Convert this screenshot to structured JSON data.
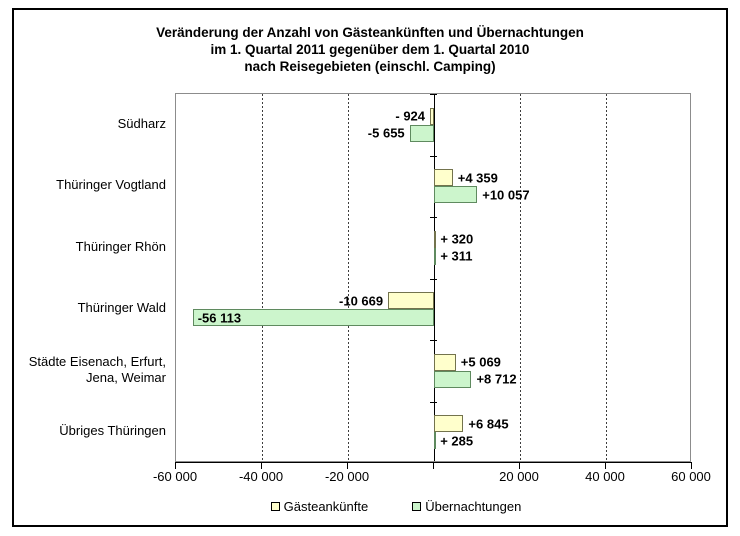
{
  "title": {
    "line1": "Veränderung der Anzahl von Gästeankünften und Übernachtungen",
    "line2": "im 1. Quartal 2011 gegenüber dem 1. Quartal 2010",
    "line3": "nach Reisegebieten (einschl. Camping)"
  },
  "chart_data": {
    "type": "bar",
    "orientation": "horizontal",
    "categories": [
      "Südharz",
      "Thüringer Vogtland",
      "Thüringer Rhön",
      "Thüringer Wald",
      "Städte Eisenach, Erfurt,\nJena, Weimar",
      "Übriges Thüringen"
    ],
    "series": [
      {
        "name": "Gästeankünfte",
        "fill": "#FFFFCC",
        "border": "#73734d",
        "values": [
          -924,
          4359,
          320,
          -10669,
          5069,
          6845
        ],
        "labels": [
          "- 924",
          "+4 359",
          "+ 320",
          "-10 669",
          "+5 069",
          "+6 845"
        ]
      },
      {
        "name": "Übernachtungen",
        "fill": "#CCF5CC",
        "border": "#5f8a5f",
        "values": [
          -5655,
          10057,
          311,
          -56113,
          8712,
          285
        ],
        "labels": [
          "-5 655",
          "+10 057",
          "+ 311",
          "-56 113",
          "+8 712",
          "+ 285"
        ]
      }
    ],
    "xlim": [
      -60000,
      60000
    ],
    "x_ticks": [
      -60000,
      -40000,
      -20000,
      0,
      20000,
      40000,
      60000
    ],
    "x_tick_labels": [
      "-60 000",
      "-40 000",
      "-20 000",
      "",
      "20 000",
      "40 000",
      "60 000"
    ],
    "grid": "vertical-dashed",
    "legend_position": "bottom",
    "colors": {
      "frame": "#000000",
      "plot_border": "#8c8c8c",
      "axis": "#000000"
    }
  }
}
